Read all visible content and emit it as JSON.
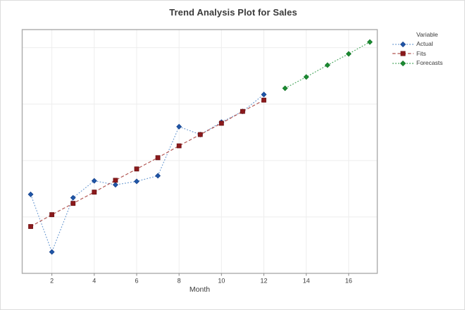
{
  "chart_data": {
    "type": "line",
    "title": "Trend Analysis Plot for Sales",
    "xlabel": "Month",
    "ylabel": "",
    "legend_header": "Variable",
    "legend_position": "right",
    "grid": true,
    "y_tick_labels_visible": false,
    "x_ticks": [
      2,
      4,
      6,
      8,
      10,
      12,
      14,
      16
    ],
    "xlim": [
      0.6,
      17.35
    ],
    "ylim": [
      0,
      43.2
    ],
    "y_gridlines": [
      10,
      20,
      30,
      40
    ],
    "frame_color": "#ACACAC",
    "gridline_color": "#EDEDED",
    "tick_color": "#8A8A8A",
    "text_color": "#3A3A3A",
    "background_color": "#FFFFFF",
    "series": [
      {
        "name": "Actual",
        "marker": "diamond",
        "marker_color": "#2057A7",
        "marker_edge_color": "#15418E",
        "line_color": "#6C9BD2",
        "line_style": "dotted",
        "x": [
          1,
          2,
          3,
          4,
          5,
          6,
          7,
          8,
          9,
          10,
          11,
          12
        ],
        "values": [
          14.0,
          3.8,
          13.4,
          16.4,
          15.7,
          16.3,
          17.3,
          26.0,
          24.6,
          26.8,
          28.7,
          31.7
        ]
      },
      {
        "name": "Fits",
        "marker": "square",
        "marker_color": "#8C1A1C",
        "marker_edge_color": "#6B1012",
        "line_color": "#B1534F",
        "line_style": "dashed",
        "x": [
          1,
          2,
          3,
          4,
          5,
          6,
          7,
          8,
          9,
          10,
          11,
          12
        ],
        "values": [
          8.3,
          10.4,
          12.4,
          14.4,
          16.5,
          18.5,
          20.5,
          22.6,
          24.6,
          26.6,
          28.7,
          30.7
        ]
      },
      {
        "name": "Forecasts",
        "marker": "diamond",
        "marker_color": "#1D8C33",
        "marker_edge_color": "#0E7423",
        "line_color": "#47A55C",
        "line_style": "dotted",
        "x": [
          13,
          14,
          15,
          16,
          17
        ],
        "values": [
          32.8,
          34.8,
          36.9,
          38.9,
          41.0
        ]
      }
    ]
  }
}
